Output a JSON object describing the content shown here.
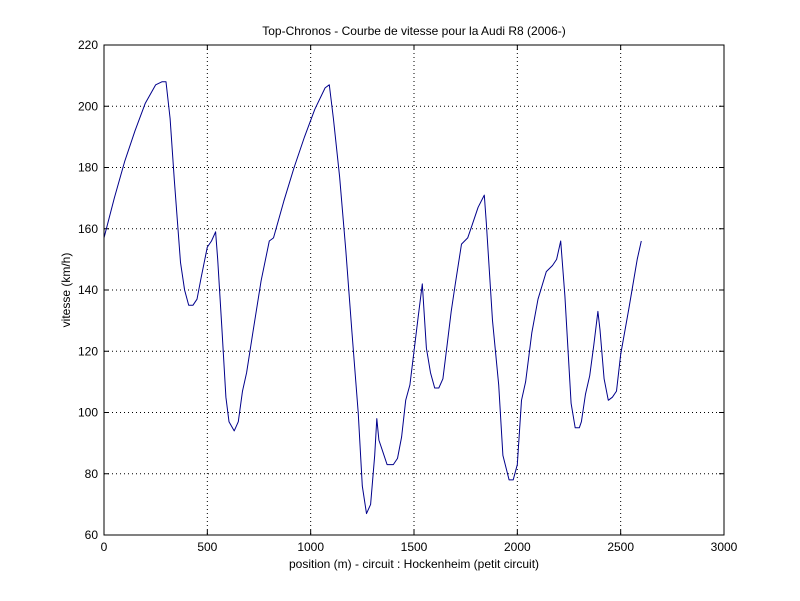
{
  "colors": {
    "background": "#ffffff",
    "axes": "#000000",
    "grid": "#000000",
    "series": "#00008b"
  },
  "chart_data": {
    "type": "line",
    "title": "Top-Chronos - Courbe de vitesse pour la Audi R8 (2006-)",
    "xlabel": "position (m) - circuit : Hockenheim (petit circuit)",
    "ylabel": "vitesse (km/h)",
    "xlim": [
      0,
      3000
    ],
    "ylim": [
      60,
      220
    ],
    "xticks": [
      0,
      500,
      1000,
      1500,
      2000,
      2500,
      3000
    ],
    "yticks": [
      60,
      80,
      100,
      120,
      140,
      160,
      180,
      200,
      220
    ],
    "grid": true,
    "grid_style": "dotted",
    "legend": "none",
    "series": [
      {
        "x": [
          0,
          50,
          100,
          150,
          200,
          250,
          280,
          300,
          320,
          340,
          370,
          390,
          410,
          430,
          450,
          470,
          500,
          520,
          540,
          550,
          570,
          590,
          605,
          630,
          650,
          670,
          690,
          720,
          760,
          800,
          820,
          870,
          920,
          970,
          1020,
          1070,
          1090,
          1110,
          1140,
          1170,
          1200,
          1230,
          1250,
          1270,
          1290,
          1310,
          1320,
          1330,
          1350,
          1370,
          1400,
          1420,
          1440,
          1460,
          1480,
          1500,
          1520,
          1540,
          1560,
          1580,
          1600,
          1620,
          1640,
          1660,
          1680,
          1700,
          1730,
          1760,
          1780,
          1810,
          1840,
          1850,
          1880,
          1910,
          1930,
          1960,
          1980,
          2000,
          2020,
          2040,
          2070,
          2100,
          2140,
          2170,
          2190,
          2210,
          2230,
          2260,
          2280,
          2300,
          2310,
          2330,
          2350,
          2370,
          2390,
          2400,
          2420,
          2440,
          2460,
          2480,
          2500,
          2540,
          2580,
          2600
        ],
        "values": [
          157,
          170,
          182,
          192,
          201,
          207,
          208,
          208,
          196,
          176,
          149,
          140,
          135,
          135,
          137,
          144,
          154,
          156,
          159,
          150,
          128,
          105,
          97,
          94,
          97,
          107,
          113,
          126,
          143,
          156,
          157,
          169,
          180,
          190,
          199,
          206,
          207,
          196,
          177,
          153,
          126,
          100,
          76,
          67,
          70,
          86,
          98,
          91,
          87,
          83,
          83,
          85,
          92,
          104,
          109,
          120,
          131,
          142,
          121,
          113,
          108,
          108,
          111,
          122,
          133,
          142,
          155,
          157,
          161,
          167,
          171,
          162,
          130,
          109,
          86,
          78,
          78,
          83,
          104,
          110,
          126,
          137,
          146,
          148,
          150,
          156,
          138,
          103,
          95,
          95,
          97,
          106,
          112,
          122,
          133,
          127,
          111,
          104,
          105,
          107,
          119,
          134,
          150,
          156
        ]
      }
    ]
  }
}
